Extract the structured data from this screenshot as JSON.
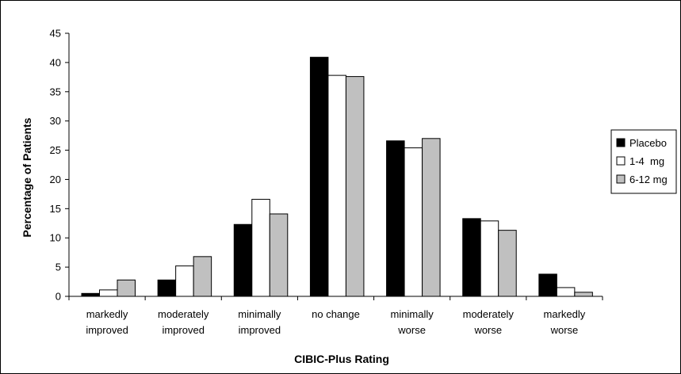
{
  "chart_data": {
    "type": "bar",
    "title": "",
    "xlabel": "CIBIC-Plus Rating",
    "ylabel": "Percentage of Patients",
    "ylim": [
      0,
      45
    ],
    "yticks": [
      0,
      5,
      10,
      15,
      20,
      25,
      30,
      35,
      40,
      45
    ],
    "grid": false,
    "legend_position": "right",
    "categories": [
      [
        "markedly",
        "improved"
      ],
      [
        "moderately",
        "improved"
      ],
      [
        "minimally",
        "improved"
      ],
      [
        "no change"
      ],
      [
        "minimally",
        "worse"
      ],
      [
        "moderately",
        "worse"
      ],
      [
        "markedly",
        "worse"
      ]
    ],
    "series": [
      {
        "name": "Placebo",
        "color": "#000000",
        "values": [
          0.5,
          2.8,
          12.3,
          40.9,
          26.6,
          13.3,
          3.8
        ]
      },
      {
        "name": "1-4  mg",
        "color": "#ffffff",
        "values": [
          1.1,
          5.2,
          16.6,
          37.8,
          25.4,
          12.9,
          1.5
        ]
      },
      {
        "name": "6-12 mg",
        "color": "#c0c0c0",
        "values": [
          2.8,
          6.8,
          14.1,
          37.6,
          27.0,
          11.3,
          0.7
        ]
      }
    ]
  }
}
